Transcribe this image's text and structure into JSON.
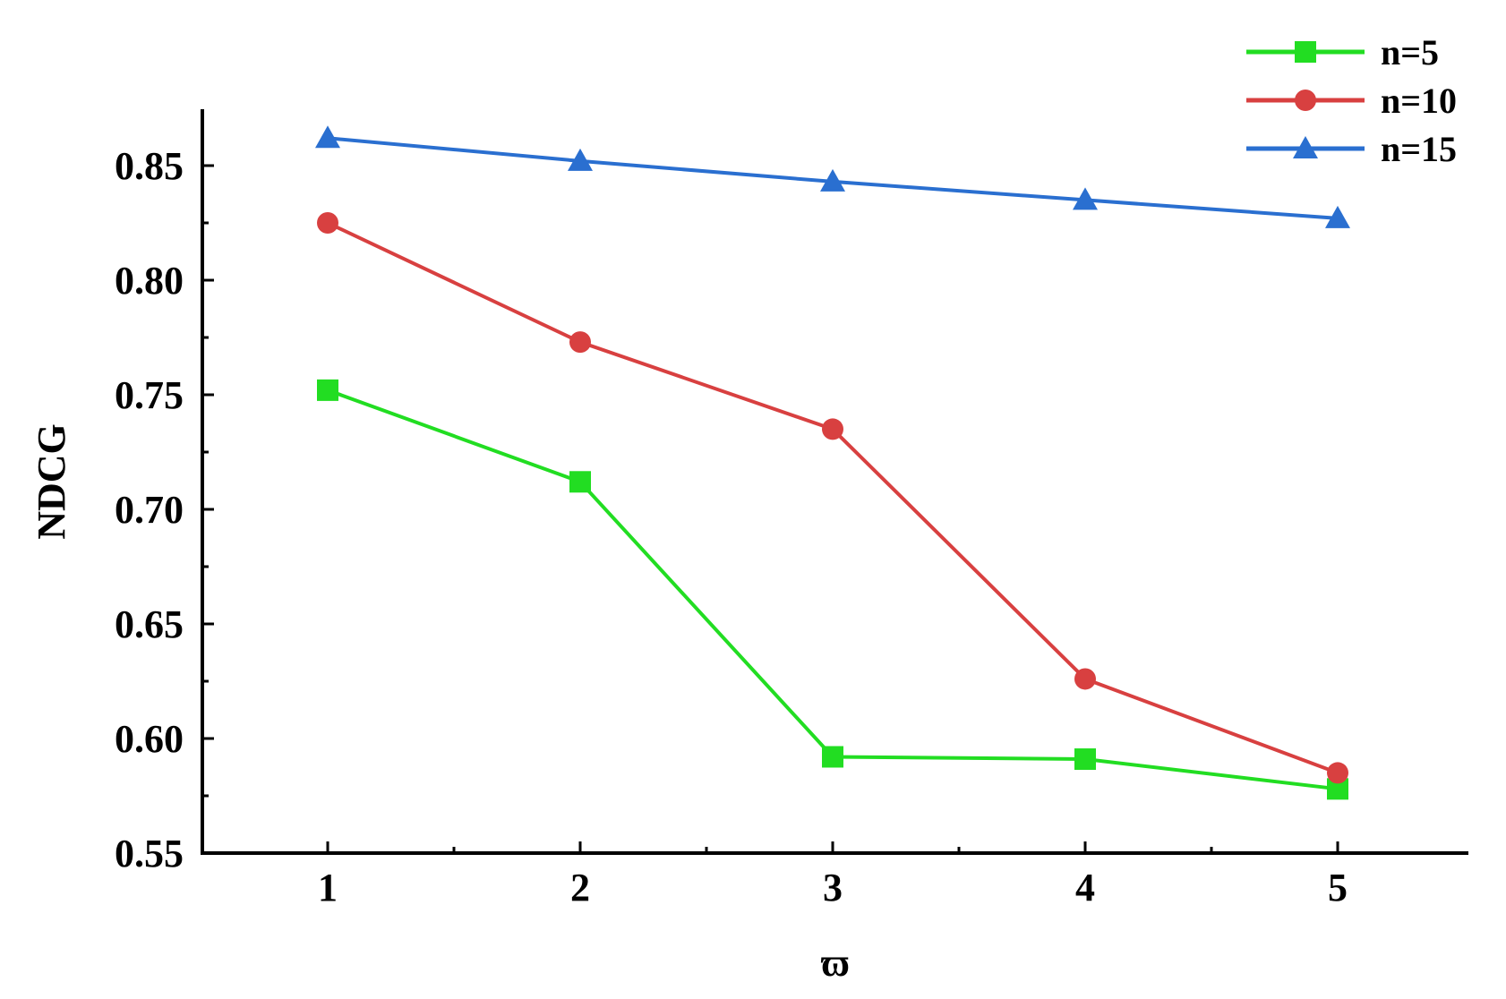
{
  "chart_data": {
    "type": "line",
    "title": "",
    "xlabel": "ϖ",
    "ylabel": "NDCG",
    "x": [
      1,
      2,
      3,
      4,
      5
    ],
    "xticks": [
      "1",
      "2",
      "3",
      "4",
      "5"
    ],
    "yticks": [
      "0.55",
      "0.60",
      "0.65",
      "0.70",
      "0.75",
      "0.80",
      "0.85"
    ],
    "xlim": [
      0.5,
      5.5
    ],
    "ylim": [
      0.55,
      0.875
    ],
    "grid": false,
    "legend_position": "top-right",
    "series": [
      {
        "name": "n=5",
        "color": "#22dd22",
        "marker": "square",
        "values": [
          0.752,
          0.712,
          0.592,
          0.591,
          0.578
        ]
      },
      {
        "name": "n=10",
        "color": "#d84040",
        "marker": "circle",
        "values": [
          0.825,
          0.773,
          0.735,
          0.626,
          0.585
        ]
      },
      {
        "name": "n=15",
        "color": "#2a6fd0",
        "marker": "triangle",
        "values": [
          0.862,
          0.852,
          0.843,
          0.835,
          0.827
        ]
      }
    ]
  }
}
